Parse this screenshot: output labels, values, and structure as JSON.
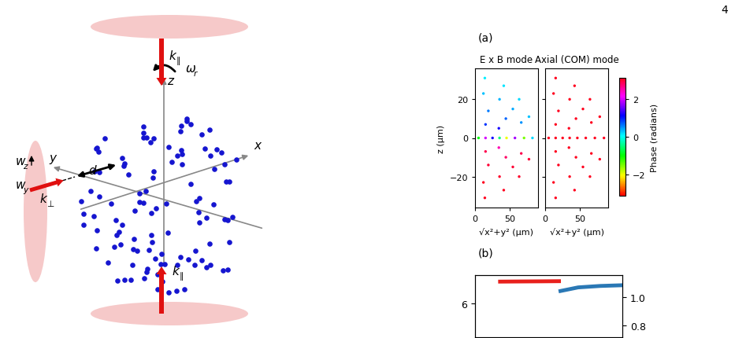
{
  "page_number": "4",
  "panel_labels": [
    "(a)",
    "(b)"
  ],
  "diagram": {
    "k_par_top": {
      "base": "k",
      "sub": "∥"
    },
    "k_par_bottom": {
      "base": "k",
      "sub": "∥"
    },
    "omega_r": {
      "base": "ω",
      "sub": "r"
    },
    "axis_z": "z",
    "axis_x": "x",
    "axis_y": "y",
    "w_z": {
      "base": "w",
      "sub": "z"
    },
    "w_y": {
      "base": "w",
      "sub": "y"
    },
    "k_perp": {
      "base": "k",
      "sub": "⊥"
    },
    "d": "d"
  },
  "colorbar": {
    "label": "Phase (radians)",
    "range": [
      -3.14159,
      3.14159
    ],
    "ticks": [
      {
        "value": -2,
        "label": "−2"
      },
      0,
      2
    ]
  },
  "chart_data": [
    {
      "type": "scatter",
      "title": "E x B mode",
      "x_label": "√x²+y² (μm)",
      "y_label": "z (μm)",
      "x": [
        14,
        41,
        63,
        77,
        82,
        77,
        63,
        41,
        14,
        12,
        35,
        54,
        66,
        70,
        66,
        54,
        35,
        12,
        19,
        44,
        57,
        44,
        19,
        15,
        34,
        45,
        34,
        15,
        5,
        15,
        25,
        35
      ],
      "values": [
        31,
        27,
        20,
        11,
        0,
        -11,
        -20,
        -27,
        -31,
        23,
        20,
        15,
        8,
        0,
        -8,
        -15,
        -20,
        -23,
        14,
        10,
        0,
        -10,
        -14,
        7,
        5,
        0,
        -5,
        -7,
        0,
        0,
        0,
        0
      ],
      "phase": [
        0.1,
        0.15,
        0.2,
        0.3,
        0.2,
        3.0,
        3.05,
        3.1,
        3.1,
        0.3,
        0.35,
        0.4,
        0.5,
        -1.5,
        2.9,
        3.0,
        3.05,
        3.1,
        0.6,
        0.7,
        1.8,
        2.8,
        3.0,
        0.9,
        1.2,
        -2.0,
        2.5,
        2.9,
        -1.0,
        2.0,
        1.2,
        -0.5
      ],
      "xlim": [
        0,
        90
      ],
      "xticks": [
        0,
        50
      ],
      "ylim": [
        -36,
        36
      ],
      "yticks": [
        {
          "value": -20,
          "label": "−20"
        },
        0,
        20
      ]
    },
    {
      "type": "scatter",
      "title": "Axial (COM) mode",
      "x_label": "√x²+y² (μm)",
      "x": [
        15,
        42,
        64,
        78,
        84,
        78,
        64,
        42,
        15,
        12,
        35,
        54,
        66,
        71,
        66,
        54,
        35,
        12,
        19,
        44,
        58,
        44,
        19,
        15,
        34,
        46,
        34,
        15,
        5,
        15,
        25,
        35
      ],
      "values": [
        31,
        27,
        20,
        11,
        0,
        -11,
        -20,
        -27,
        -31,
        23,
        20,
        15,
        8,
        0,
        -8,
        -15,
        -20,
        -23,
        14,
        10,
        0,
        -10,
        -14,
        7,
        5,
        0,
        -5,
        -7,
        0,
        0,
        0,
        0
      ],
      "phase": [
        3.1,
        3.1,
        3.1,
        3.1,
        3.1,
        3.1,
        3.1,
        3.1,
        3.1,
        3.1,
        3.1,
        3.1,
        3.1,
        3.1,
        3.1,
        3.1,
        3.1,
        3.1,
        3.1,
        3.1,
        3.1,
        3.1,
        3.1,
        3.1,
        3.1,
        3.1,
        3.1,
        3.1,
        3.1,
        3.1,
        3.1,
        3.1
      ],
      "xlim": [
        0,
        90
      ],
      "xticks": [
        0,
        50
      ],
      "ylim": [
        -36,
        36
      ],
      "yticks": [
        -20,
        0,
        20
      ],
      "tick_labels": "x"
    },
    {
      "type": "line",
      "xlim": [
        0,
        1
      ],
      "ylim": [
        4.9,
        6.9
      ],
      "yticks": [
        6
      ],
      "y2lim": [
        0.72,
        1.15
      ],
      "y2ticks": [
        0.8,
        1.0
      ],
      "tick_labels": "y",
      "series": [
        {
          "color": "#e8201c",
          "axis": "y2",
          "x": [
            0.17,
            0.3,
            0.45,
            0.57
          ],
          "values": [
            1.105,
            1.106,
            1.107,
            1.108
          ]
        },
        {
          "color": "#2a78b5",
          "axis": "y2",
          "x": [
            0.58,
            0.7,
            0.85,
            1.0
          ],
          "values": [
            1.04,
            1.065,
            1.075,
            1.08
          ]
        }
      ]
    }
  ]
}
